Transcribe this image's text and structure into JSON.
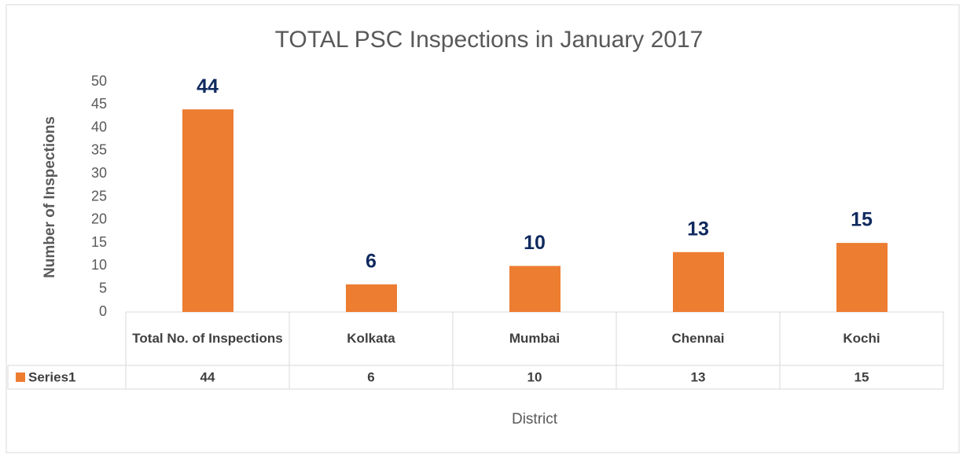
{
  "chart_data": {
    "type": "bar",
    "title": "TOTAL PSC Inspections in January 2017",
    "categories": [
      "Total No. of Inspections",
      "Kolkata",
      "Mumbai",
      "Chennai",
      "Kochi"
    ],
    "series": [
      {
        "name": "Series1",
        "color": "#ed7d31",
        "values": [
          44,
          6,
          10,
          13,
          15
        ]
      }
    ],
    "ylim": [
      0,
      50
    ],
    "yticks": [
      0,
      5,
      10,
      15,
      20,
      25,
      30,
      35,
      40,
      45,
      50
    ],
    "y_axis_label": "Number of Inspections",
    "x_axis_label": "District",
    "grid": false,
    "data_labels": true,
    "data_label_color": "#0f2a5e",
    "data_table": true
  }
}
